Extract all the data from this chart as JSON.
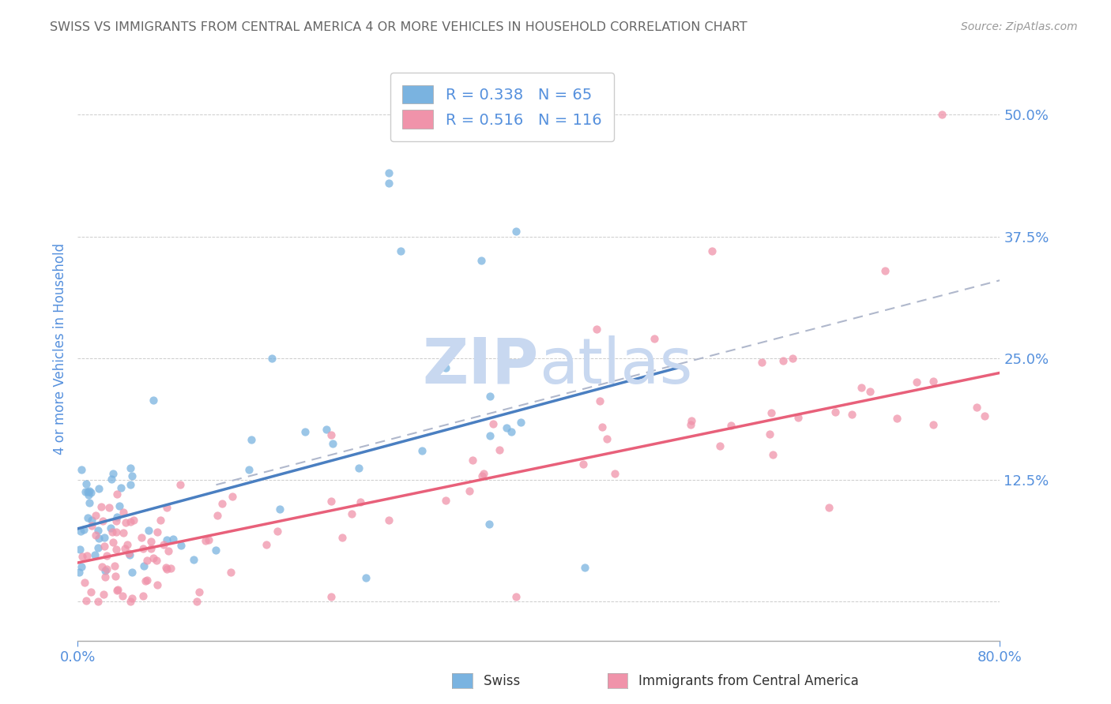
{
  "title": "SWISS VS IMMIGRANTS FROM CENTRAL AMERICA 4 OR MORE VEHICLES IN HOUSEHOLD CORRELATION CHART",
  "source": "Source: ZipAtlas.com",
  "ylabel": "4 or more Vehicles in Household",
  "xlim": [
    0.0,
    0.8
  ],
  "ylim": [
    -0.04,
    0.56
  ],
  "legend_labels": [
    "Swiss",
    "Immigrants from Central America"
  ],
  "swiss_R": 0.338,
  "swiss_N": 65,
  "imm_R": 0.516,
  "imm_N": 116,
  "swiss_color": "#7ab3e0",
  "imm_color": "#f093aa",
  "blue_line_color": "#4a7fc1",
  "pink_line_color": "#e8607a",
  "dashed_line_color": "#b0b8cc",
  "background_color": "#ffffff",
  "grid_color": "#cccccc",
  "title_color": "#666666",
  "tick_label_color": "#5590dd",
  "watermark_color": "#c8d8f0",
  "seed": 42,
  "yticks": [
    0.125,
    0.25,
    0.375,
    0.5
  ],
  "xticks": [
    0.0,
    0.8
  ],
  "blue_line_x": [
    0.0,
    0.52
  ],
  "blue_line_y": [
    0.075,
    0.24
  ],
  "pink_line_x": [
    0.0,
    0.8
  ],
  "pink_line_y": [
    0.04,
    0.235
  ],
  "dash_line_x": [
    0.12,
    0.8
  ],
  "dash_line_y": [
    0.12,
    0.33
  ]
}
